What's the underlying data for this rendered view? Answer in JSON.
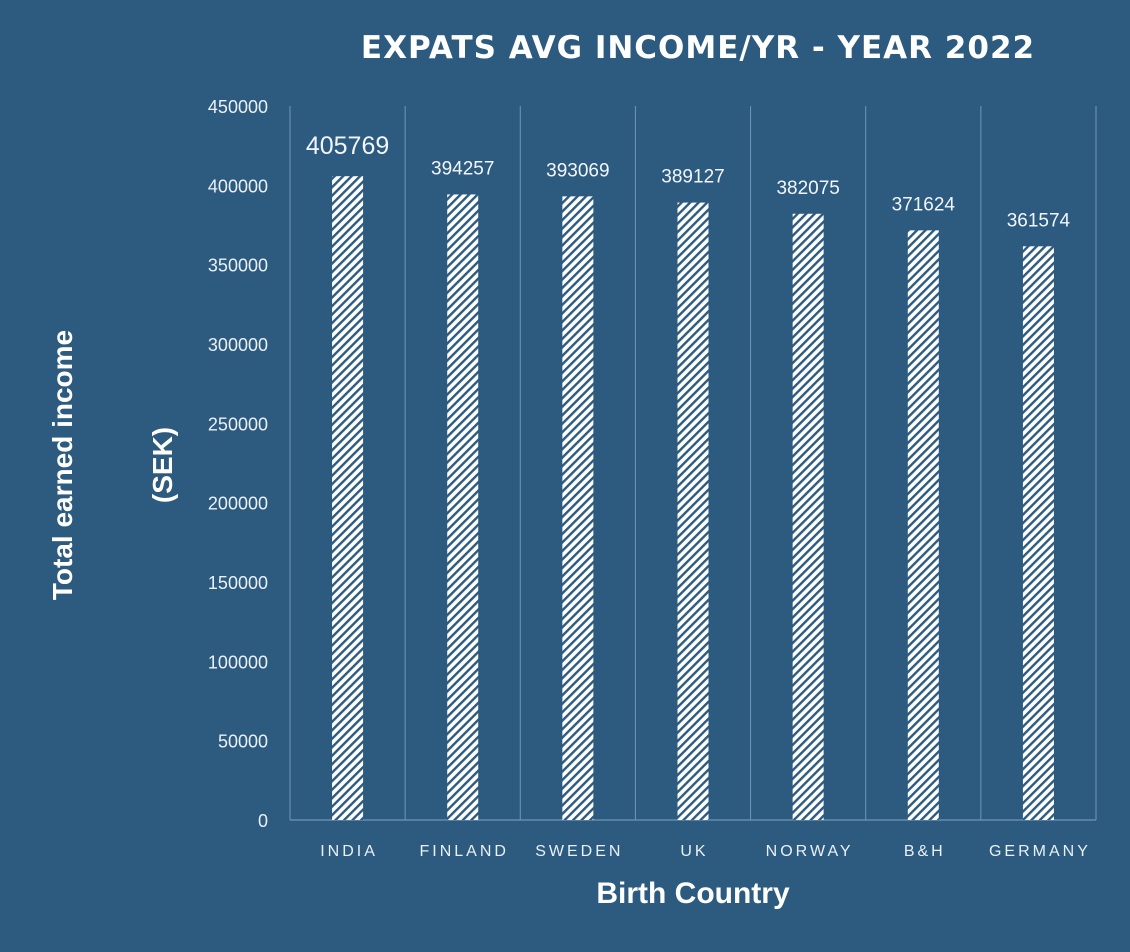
{
  "chart_data": {
    "type": "bar",
    "title": "EXPATS AVG INCOME/YR - YEAR 2022",
    "xlabel": "Birth Country",
    "ylabel": [
      "Total earned income",
      "(SEK)"
    ],
    "categories": [
      "INDIA",
      "FINLAND",
      "SWEDEN",
      "UK",
      "NORWAY",
      "B&H",
      "GERMANY"
    ],
    "values": [
      405769,
      394257,
      393069,
      389127,
      382075,
      371624,
      361574
    ],
    "data_labels": [
      "405769",
      "394257",
      "393069",
      "389127",
      "382075",
      "371624",
      "361574"
    ],
    "ylim": [
      0,
      450000
    ],
    "yticks": [
      0,
      50000,
      100000,
      150000,
      200000,
      250000,
      300000,
      350000,
      400000,
      450000
    ],
    "ytick_labels": [
      "0",
      "50000",
      "100000",
      "150000",
      "200000",
      "250000",
      "300000",
      "350000",
      "400000",
      "450000"
    ],
    "grid": "vertical separators",
    "legend": "none",
    "bar_fill": "diagonal-hatch",
    "colors": {
      "background": "#2d5b80",
      "bar_stripe": "#ffffff",
      "bar_gap": "#2d5b80",
      "gridline": "#6e96b8",
      "text": "#ffffff"
    }
  }
}
